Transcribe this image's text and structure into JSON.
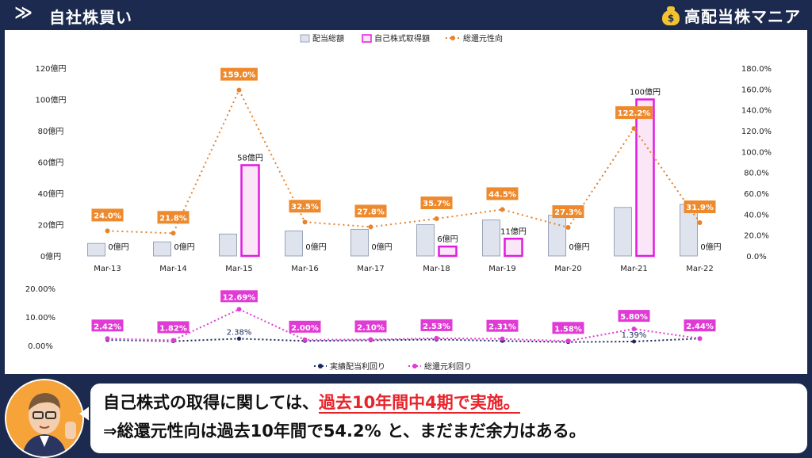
{
  "header": {
    "chevron": "≫",
    "title": "自社株買い",
    "brand_icon": "money-bag-icon",
    "brand_icon_glyph": "$",
    "brand": "高配当株マニア"
  },
  "colors": {
    "dividend": "#dfe3ee",
    "dividend_stroke": "#9aa4b8",
    "buyback": "#fbe6f7",
    "buyback_stroke": "#e11ce0",
    "payout": "#e8822b",
    "label_bg": "#ee8a2e",
    "actual_yield": "#1b2a5e",
    "total_yield": "#e13bd5"
  },
  "chart_data": [
    {
      "type": "bar",
      "categories": [
        "Mar-13",
        "Mar-14",
        "Mar-15",
        "Mar-16",
        "Mar-17",
        "Mar-18",
        "Mar-19",
        "Mar-20",
        "Mar-21",
        "Mar-22"
      ],
      "legend": [
        "配当総額",
        "自己株式取得額",
        "総還元性向"
      ],
      "series": [
        {
          "name": "配当総額",
          "values": [
            8,
            9,
            14,
            16,
            17,
            20,
            23,
            26,
            31,
            33
          ]
        },
        {
          "name": "自己株式取得額",
          "values": [
            0,
            0,
            58,
            0,
            0,
            6,
            11,
            0,
            100,
            0
          ],
          "labels": [
            "0億円",
            "0億円",
            "58億円",
            "0億円",
            "0億円",
            "6億円",
            "11億円",
            "0億円",
            "100億円",
            "0億円"
          ]
        },
        {
          "name": "総還元性向",
          "axis": "right",
          "values": [
            24.0,
            21.8,
            159.0,
            32.5,
            27.8,
            35.7,
            44.5,
            27.3,
            122.2,
            31.9
          ],
          "labels": [
            "24.0%",
            "21.8%",
            "159.0%",
            "32.5%",
            "27.8%",
            "35.7%",
            "44.5%",
            "27.3%",
            "122.2%",
            "31.9%"
          ]
        }
      ],
      "yticks_left": [
        "0億円",
        "20億円",
        "40億円",
        "60億円",
        "80億円",
        "100億円",
        "120億円"
      ],
      "ylim_left": [
        0,
        120
      ],
      "yticks_right": [
        "0.0%",
        "20.0%",
        "40.0%",
        "60.0%",
        "80.0%",
        "100.0%",
        "120.0%",
        "140.0%",
        "160.0%",
        "180.0%"
      ],
      "ylim_right": [
        0,
        180
      ]
    },
    {
      "type": "line",
      "categories": [
        "Mar-13",
        "Mar-14",
        "Mar-15",
        "Mar-16",
        "Mar-17",
        "Mar-18",
        "Mar-19",
        "Mar-20",
        "Mar-21",
        "Mar-22"
      ],
      "legend": [
        "実績配当利回り",
        "総還元利回り"
      ],
      "series": [
        {
          "name": "実績配当利回り",
          "values": [
            1.95,
            1.5,
            2.38,
            1.6,
            1.8,
            2.1,
            1.6,
            1.2,
            1.39,
            2.44
          ],
          "labels": [
            "",
            "",
            "2.38%",
            "",
            "",
            "",
            "",
            "",
            "1.39%",
            ""
          ]
        },
        {
          "name": "総還元利回り",
          "values": [
            2.42,
            1.82,
            12.69,
            2.0,
            2.1,
            2.53,
            2.31,
            1.58,
            5.8,
            2.44
          ],
          "labels": [
            "2.42%",
            "1.82%",
            "12.69%",
            "2.00%",
            "2.10%",
            "2.53%",
            "2.31%",
            "1.58%",
            "5.80%",
            "2.44%"
          ]
        }
      ],
      "yticks": [
        "0.00%",
        "10.00%",
        "20.00%"
      ],
      "ylim": [
        0,
        20
      ]
    }
  ],
  "bubble": {
    "avatar_icon": "presenter-avatar-icon",
    "line1_pre": "自己株式の取得に関しては、",
    "line1_highlight": "過去10年間中4期で実施。",
    "line2": "⇒総還元性向は過去10年間で54.2% と、まだまだ余力はある。"
  }
}
